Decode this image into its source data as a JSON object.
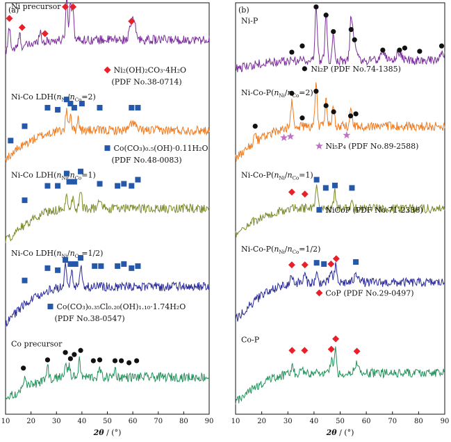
{
  "chart_data": [
    {
      "type": "line",
      "panel_label": "(a)",
      "xlabel": "2θ / (°)",
      "xlim": [
        10,
        90
      ],
      "xticks": [
        10,
        20,
        30,
        40,
        50,
        60,
        70,
        80,
        90
      ],
      "ylabel": "",
      "grid": false,
      "series": [
        {
          "name": "Ni precursor",
          "color": "#7b2d9b",
          "base": 0.88,
          "top_base": 0.91,
          "peaks": [
            [
              11.5,
              0.06
            ],
            [
              15.5,
              0.03
            ],
            [
              23.5,
              0.03
            ],
            [
              34.0,
              0.1
            ],
            [
              35.5,
              0.09
            ],
            [
              36.5,
              0.07
            ],
            [
              60.0,
              0.05
            ]
          ],
          "markers": {
            "symbol": "diamond",
            "color": "#e8202a",
            "positions": [
              [
                11.5,
                0.962
              ],
              [
                16.5,
                0.94
              ],
              [
                25.5,
                0.925
              ],
              [
                33.5,
                0.99
              ],
              [
                36.5,
                0.99
              ],
              [
                59.5,
                0.955
              ]
            ]
          },
          "legend": {
            "label": "Ni₂(OH)₂CO₃·4H₂O",
            "pdf": "(PDF No.38-0714)",
            "at": [
              0.5,
              0.83
            ]
          }
        },
        {
          "name": "Ni-Co LDH(nNi/nCo=2)",
          "color": "#f07a1e",
          "base": 0.62,
          "top_base": 0.69,
          "peaks": [
            [
              34.0,
              0.05
            ],
            [
              35.5,
              0.04
            ],
            [
              38.5,
              0.03
            ],
            [
              60.0,
              0.02
            ]
          ],
          "markers": {
            "symbol": "square",
            "color": "#2558a8",
            "positions": [
              [
                12.0,
                0.665
              ],
              [
                17.5,
                0.7
              ],
              [
                26.5,
                0.745
              ],
              [
                30.5,
                0.74
              ],
              [
                34.0,
                0.765
              ],
              [
                35.5,
                0.755
              ],
              [
                37.0,
                0.745
              ],
              [
                40.0,
                0.755
              ],
              [
                47.0,
                0.745
              ],
              [
                59.5,
                0.745
              ],
              [
                62.0,
                0.745
              ]
            ]
          },
          "legend": {
            "label": "Co(CO₃)₀.₅(OH)·0.11H₂O",
            "pdf": "(PDF No.48-0083)",
            "at": [
              0.5,
              0.64
            ]
          }
        },
        {
          "name": "Ni-Co LDH(nNi/nCo=1)",
          "color": "#7a8a2a",
          "base": 0.42,
          "top_base": 0.5,
          "peaks": [
            [
              34.0,
              0.04
            ],
            [
              36.5,
              0.03
            ],
            [
              39.5,
              0.05
            ],
            [
              47.0,
              0.02
            ]
          ],
          "markers": {
            "symbol": "square",
            "color": "#2558a8",
            "positions": [
              [
                17.5,
                0.52
              ],
              [
                26.5,
                0.555
              ],
              [
                30.5,
                0.555
              ],
              [
                34.0,
                0.585
              ],
              [
                35.0,
                0.565
              ],
              [
                37.0,
                0.565
              ],
              [
                39.5,
                0.59
              ],
              [
                47.0,
                0.56
              ],
              [
                54.0,
                0.555
              ],
              [
                56.5,
                0.56
              ],
              [
                59.5,
                0.555
              ],
              [
                62.0,
                0.57
              ]
            ]
          }
        },
        {
          "name": "Ni-Co LDH(nNi/nCo=1/2)",
          "color": "#2a2a9a",
          "base": 0.22,
          "top_base": 0.31,
          "peaks": [
            [
              33.5,
              0.05
            ],
            [
              36.0,
              0.04
            ],
            [
              39.5,
              0.05
            ]
          ],
          "markers": {
            "symbol": "square",
            "color": "#2558a8",
            "positions": [
              [
                17.5,
                0.325
              ],
              [
                26.5,
                0.355
              ],
              [
                30.5,
                0.35
              ],
              [
                33.5,
                0.375
              ],
              [
                35.5,
                0.365
              ],
              [
                37.5,
                0.365
              ],
              [
                39.5,
                0.38
              ],
              [
                45.0,
                0.36
              ],
              [
                47.5,
                0.36
              ],
              [
                54.0,
                0.36
              ],
              [
                56.5,
                0.365
              ],
              [
                59.5,
                0.355
              ],
              [
                62.0,
                0.36
              ]
            ]
          },
          "legend": {
            "label": "Co(CO₃)₀.₃₅Cl₀.₂₀(OH)₁.₁₀·1.74H₂O",
            "pdf": "(PDF No.38-0547)",
            "at": [
              0.22,
              0.255
            ]
          }
        },
        {
          "name": "Co precursor",
          "color": "#21915a",
          "base": 0.035,
          "top_base": 0.09,
          "peaks": [
            [
              17.5,
              0.03
            ],
            [
              26.5,
              0.03
            ],
            [
              33.5,
              0.03
            ],
            [
              35.0,
              0.03
            ],
            [
              39.0,
              0.04
            ],
            [
              47.0,
              0.02
            ],
            [
              53.0,
              0.02
            ]
          ],
          "markers": {
            "symbol": "circle",
            "color": "#111111",
            "positions": [
              [
                17.0,
                0.112
              ],
              [
                26.5,
                0.132
              ],
              [
                33.5,
                0.15
              ],
              [
                35.5,
                0.135
              ],
              [
                37.0,
                0.145
              ],
              [
                39.5,
                0.155
              ],
              [
                44.5,
                0.13
              ],
              [
                47.0,
                0.132
              ],
              [
                53.0,
                0.13
              ],
              [
                55.5,
                0.13
              ],
              [
                58.5,
                0.125
              ],
              [
                61.5,
                0.13
              ]
            ]
          }
        }
      ]
    },
    {
      "type": "line",
      "panel_label": "(b)",
      "xlabel": "2θ / (°)",
      "xlim": [
        10,
        90
      ],
      "xticks": [
        10,
        20,
        30,
        40,
        50,
        60,
        70,
        80,
        90
      ],
      "ylabel": "",
      "grid": false,
      "series": [
        {
          "name": "Ni-P",
          "color": "#7b2d9b",
          "base": 0.84,
          "top_base": 0.86,
          "peaks": [
            [
              40.8,
              0.14
            ],
            [
              44.6,
              0.12
            ],
            [
              47.4,
              0.07
            ],
            [
              54.2,
              0.08
            ],
            [
              55.2,
              0.05
            ],
            [
              66.3,
              0.02
            ],
            [
              72.7,
              0.02
            ],
            [
              88.8,
              0.02
            ]
          ],
          "markers": {
            "symbol": "circle",
            "color": "#111111",
            "positions": [
              [
                40.8,
                0.99
              ],
              [
                44.6,
                0.97
              ],
              [
                47.4,
                0.93
              ],
              [
                54.2,
                0.935
              ],
              [
                55.5,
                0.91
              ],
              [
                31.5,
                0.88
              ],
              [
                35.5,
                0.895
              ],
              [
                66.3,
                0.885
              ],
              [
                72.7,
                0.885
              ],
              [
                74.7,
                0.89
              ],
              [
                80.4,
                0.882
              ],
              [
                88.8,
                0.895
              ]
            ]
          },
          "legend": {
            "label": "Ni₂P (PDF No.74-1385)",
            "symbol": "circle",
            "color": "#111111",
            "at": [
              0.33,
              0.833
            ]
          }
        },
        {
          "name": "Ni-Co-P(nNi/nCo=2)",
          "color": "#f07a1e",
          "base": 0.62,
          "top_base": 0.7,
          "peaks": [
            [
              17.5,
              0.03
            ],
            [
              31.5,
              0.06
            ],
            [
              40.8,
              0.1
            ],
            [
              44.6,
              0.07
            ],
            [
              47.4,
              0.05
            ],
            [
              54.2,
              0.05
            ]
          ],
          "markers": {
            "symbol": "circle",
            "color": "#111111",
            "positions": [
              [
                17.5,
                0.7
              ],
              [
                31.5,
                0.78
              ],
              [
                35.5,
                0.72
              ],
              [
                40.8,
                0.785
              ],
              [
                44.6,
                0.75
              ],
              [
                47.5,
                0.735
              ],
              [
                54.0,
                0.725
              ],
              [
                56.0,
                0.73
              ]
            ]
          },
          "markers2": {
            "symbol": "star",
            "color": "#c070c8",
            "positions": [
              [
                28.5,
                0.672
              ],
              [
                31.0,
                0.675
              ],
              [
                52.5,
                0.678
              ]
            ]
          },
          "legend": {
            "label": "Ni₅P₄ (PDF No.89-2588)",
            "symbol": "star",
            "color": "#c070c8",
            "at": [
              0.4,
              0.645
            ]
          }
        },
        {
          "name": "Ni-Co-P(nNi/nCo=1)",
          "color": "#7a8a2a",
          "base": 0.44,
          "top_base": 0.5,
          "peaks": [
            [
              41.0,
              0.06
            ],
            [
              48.0,
              0.04
            ],
            [
              54.5,
              0.03
            ]
          ],
          "markers": {
            "symbol": "diamond",
            "color": "#e8202a",
            "positions": [
              [
                31.5,
                0.54
              ],
              [
                36.5,
                0.535
              ]
            ]
          },
          "markers2": {
            "symbol": "square",
            "color": "#2558a8",
            "positions": [
              [
                41.0,
                0.57
              ],
              [
                44.5,
                0.55
              ],
              [
                48.0,
                0.556
              ],
              [
                54.5,
                0.55
              ]
            ]
          },
          "legend": {
            "label": "NiCoP (PDF No.71-2336)",
            "symbol": "square",
            "color": "#2558a8",
            "at": [
              0.4,
              0.49
            ]
          }
        },
        {
          "name": "Ni-Co-P(nNi/nCo=1/2)",
          "color": "#2a2a9a",
          "base": 0.23,
          "top_base": 0.32,
          "peaks": [
            [
              31.5,
              0.02
            ],
            [
              36.5,
              0.02
            ],
            [
              41.0,
              0.02
            ],
            [
              46.5,
              0.03
            ],
            [
              48.3,
              0.04
            ],
            [
              56.5,
              0.02
            ]
          ],
          "markers": {
            "symbol": "diamond",
            "color": "#e8202a",
            "positions": [
              [
                31.5,
                0.363
              ],
              [
                36.5,
                0.363
              ],
              [
                46.5,
                0.365
              ],
              [
                48.5,
                0.378
              ]
            ]
          },
          "markers2": {
            "symbol": "square",
            "color": "#2558a8",
            "positions": [
              [
                41.0,
                0.368
              ],
              [
                43.8,
                0.365
              ],
              [
                56.0,
                0.37
              ]
            ]
          },
          "legend": {
            "label": "CoP (PDF No.29-0497)",
            "symbol": "diamond",
            "color": "#e8202a",
            "at": [
              0.4,
              0.288
            ]
          }
        },
        {
          "name": "Co-P",
          "color": "#21915a",
          "base": 0.03,
          "top_base": 0.1,
          "peaks": [
            [
              31.6,
              0.02
            ],
            [
              36.4,
              0.01
            ],
            [
              46.6,
              0.03
            ],
            [
              48.1,
              0.06
            ],
            [
              56.4,
              0.02
            ]
          ],
          "markers": {
            "symbol": "diamond",
            "color": "#e8202a",
            "positions": [
              [
                31.6,
                0.155
              ],
              [
                36.4,
                0.155
              ],
              [
                46.6,
                0.158
              ],
              [
                48.3,
                0.183
              ],
              [
                56.4,
                0.153
              ]
            ]
          }
        }
      ]
    }
  ]
}
